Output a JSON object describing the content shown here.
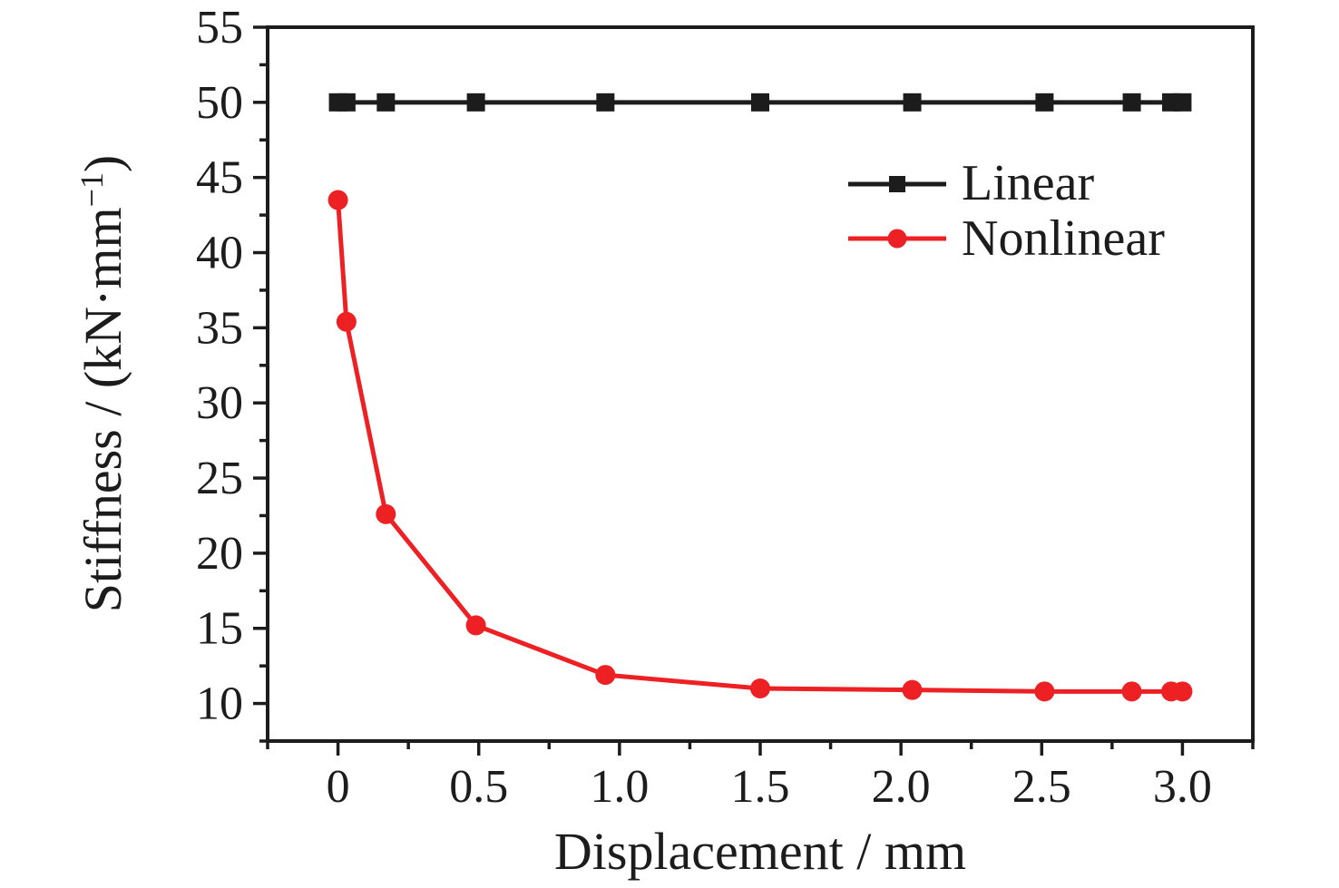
{
  "colors": {
    "ink": "#1c1c1c",
    "background": "#ffffff",
    "nonlinear_red": "#ed2024"
  },
  "chart_data": {
    "type": "line",
    "title": "",
    "xlabel": "Displacement / mm",
    "ylabel": "Stiffness / (kN·mm⁻¹)",
    "ylabel_parts": {
      "main": "Stiffness / (kN·mm",
      "sup": "−1",
      "end": ")"
    },
    "xlim": [
      -0.25,
      3.25
    ],
    "ylim": [
      7.5,
      55
    ],
    "grid": false,
    "legend_position": "upper-right-inside",
    "x_major_ticks": [
      0,
      0.5,
      1.0,
      1.5,
      2.0,
      2.5,
      3.0
    ],
    "x_tick_labels": [
      "0",
      "0.5",
      "1.0",
      "1.5",
      "2.0",
      "2.5",
      "3.0"
    ],
    "x_minor_ticks": [
      -0.25,
      0.25,
      0.75,
      1.25,
      1.75,
      2.25,
      2.75,
      3.25
    ],
    "y_major_ticks": [
      10,
      15,
      20,
      25,
      30,
      35,
      40,
      45,
      50,
      55
    ],
    "y_tick_labels": [
      "10",
      "15",
      "20",
      "25",
      "30",
      "35",
      "40",
      "45",
      "50",
      "55"
    ],
    "y_minor_ticks": [
      7.5,
      12.5,
      17.5,
      22.5,
      27.5,
      32.5,
      37.5,
      42.5,
      47.5,
      52.5
    ],
    "x": [
      0.0,
      0.03,
      0.17,
      0.49,
      0.95,
      1.5,
      2.04,
      2.51,
      2.82,
      2.96,
      3.0
    ],
    "series": [
      {
        "name": "Linear",
        "color": "#1c1c1c",
        "marker": "square",
        "x": [
          0.0,
          0.03,
          0.17,
          0.49,
          0.95,
          1.5,
          2.04,
          2.51,
          2.82,
          2.96,
          3.0
        ],
        "y": [
          50,
          50,
          50,
          50,
          50,
          50,
          50,
          50,
          50,
          50,
          50
        ]
      },
      {
        "name": "Nonlinear",
        "color": "#ed2024",
        "marker": "circle",
        "x": [
          0.0,
          0.03,
          0.17,
          0.49,
          0.95,
          1.5,
          2.04,
          2.51,
          2.82,
          2.96,
          3.0
        ],
        "y": [
          43.5,
          35.4,
          22.6,
          15.2,
          11.9,
          11.0,
          10.9,
          10.8,
          10.8,
          10.8,
          10.8
        ]
      }
    ]
  }
}
